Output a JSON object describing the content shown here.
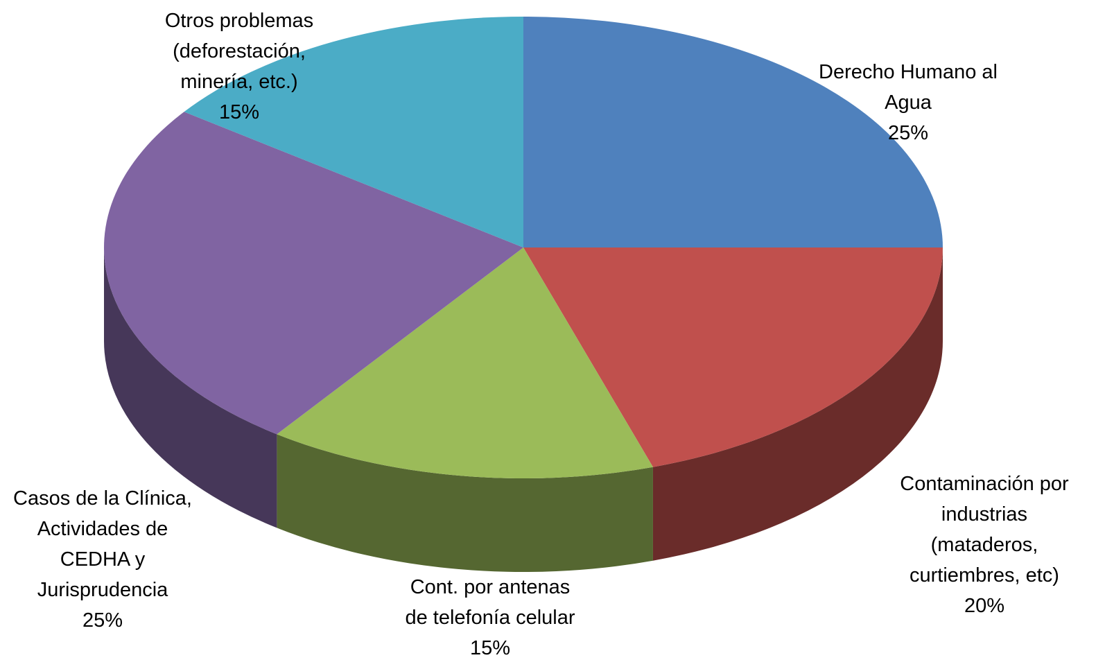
{
  "chart_data": {
    "type": "pie",
    "categories": [
      "Derecho Humano al\nAgua",
      "Contaminación por\nindustrias\n(mataderos,\ncurtiembres, etc)",
      "Cont. por antenas\nde telefonía celular",
      "Casos de la Clínica,\nActividades de\nCEDHA y\nJurisprudencia",
      "Otros problemas\n(deforestación,\nminería, etc.)"
    ],
    "values": [
      25,
      20,
      15,
      25,
      15
    ],
    "value_labels": [
      "25%",
      "20%",
      "15%",
      "25%",
      "15%"
    ],
    "colors": [
      "#4f81bd",
      "#c0504d",
      "#9bbb59",
      "#8064a2",
      "#4bacc6"
    ]
  }
}
